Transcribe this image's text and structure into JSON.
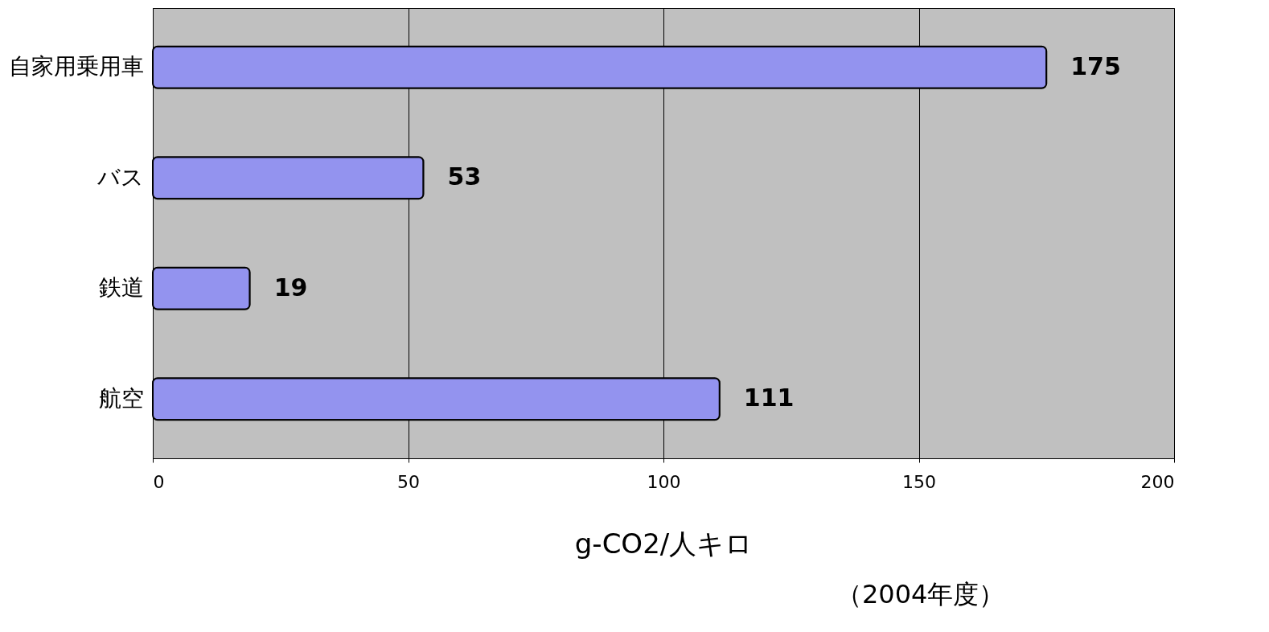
{
  "chart_data": {
    "type": "bar",
    "orientation": "horizontal",
    "categories": [
      "自家用乗用車",
      "バス",
      "鉄道",
      "航空"
    ],
    "values": [
      175,
      53,
      19,
      111
    ],
    "color": "#9393ef",
    "xlim": [
      0,
      200
    ],
    "xticks": [
      0,
      50,
      100,
      150,
      200
    ],
    "xlabel": "g-CO2/人キロ",
    "annotations": [
      "（2004年度）"
    ],
    "data_labels": true,
    "grid": "x"
  }
}
